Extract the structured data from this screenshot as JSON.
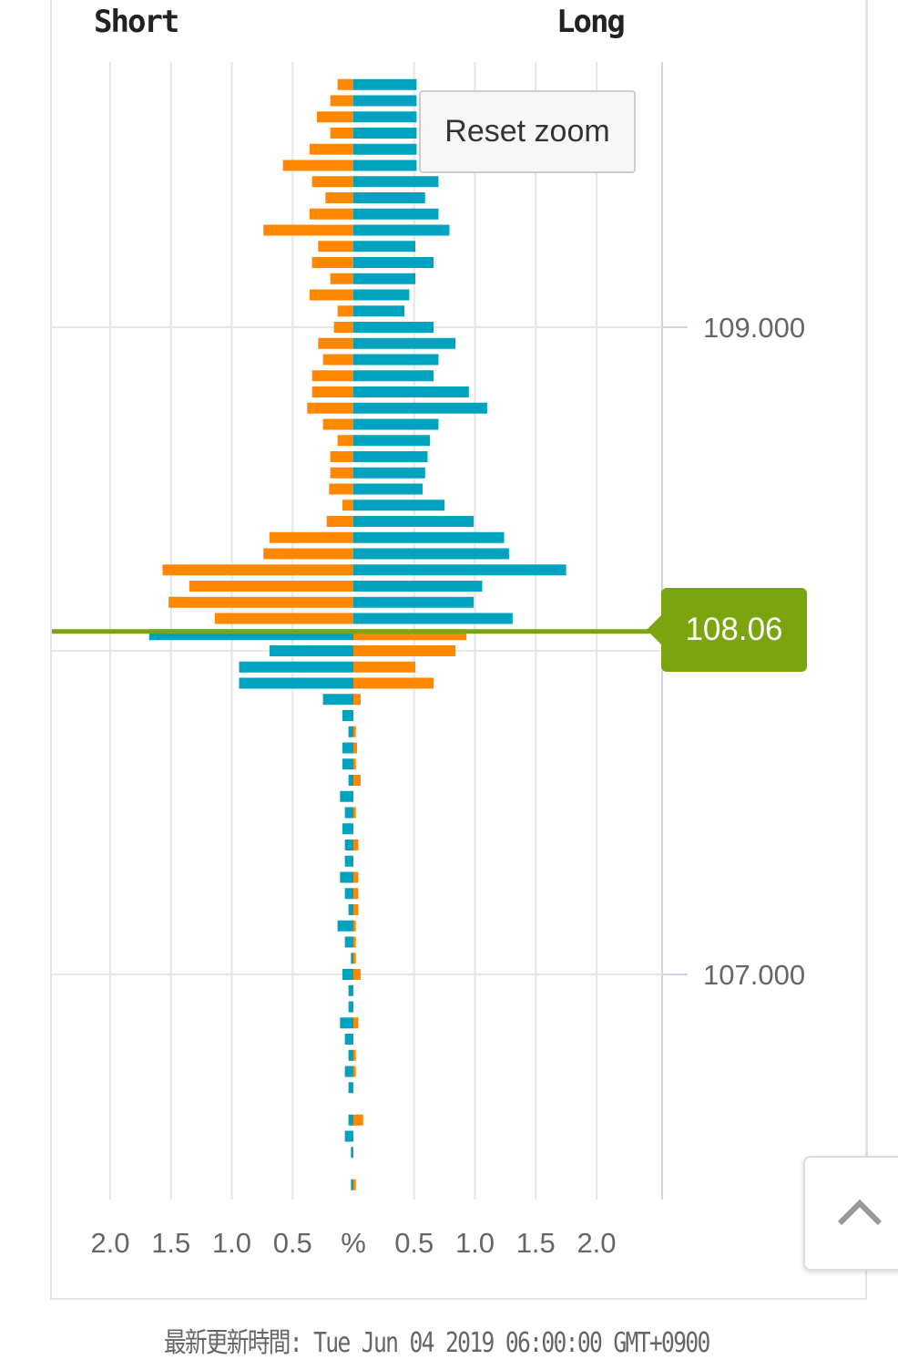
{
  "header": {
    "short_label": "Short",
    "long_label": "Long"
  },
  "reset_zoom_label": "Reset zoom",
  "current_price_label": "108.06",
  "footer": {
    "updated_text": "最新更新時間: Tue Jun 04 2019 06:00:00 GMT+0900"
  },
  "colors": {
    "orange": "#ff8800",
    "blue": "#00a3bf",
    "price_line": "#7aa50e"
  },
  "chart_data": {
    "type": "bar",
    "title": "",
    "orientation": "horizontal-butterfly",
    "xlabel": "%",
    "x_tick_labels": [
      "2.0",
      "1.5",
      "1.0",
      "0.5",
      "%",
      "0.5",
      "1.0",
      "1.5",
      "2.0"
    ],
    "xlim": [
      -2.5,
      2.5
    ],
    "y_tick_labels": [
      "109.000",
      "108.000",
      "107.000"
    ],
    "y_ticks": [
      109.0,
      108.0,
      107.0
    ],
    "ylim": [
      106.3,
      109.8
    ],
    "current_price": 108.06,
    "price_step": 0.05,
    "top_price": 109.75,
    "series": [
      {
        "name": "Left (Short above price / Long below)",
        "values": [
          0.13,
          0.19,
          0.3,
          0.19,
          0.36,
          0.58,
          0.34,
          0.23,
          0.36,
          0.74,
          0.29,
          0.34,
          0.19,
          0.36,
          0.13,
          0.16,
          0.29,
          0.25,
          0.34,
          0.34,
          0.38,
          0.25,
          0.13,
          0.19,
          0.19,
          0.2,
          0.09,
          0.22,
          0.69,
          0.74,
          1.57,
          1.35,
          1.52,
          1.14,
          1.68,
          0.69,
          0.94,
          0.94,
          0.25,
          0.09,
          0.04,
          0.09,
          0.09,
          0.04,
          0.11,
          0.07,
          0.09,
          0.07,
          0.07,
          0.11,
          0.07,
          0.04,
          0.13,
          0.07,
          0.02,
          0.09,
          0.04,
          0.04,
          0.11,
          0.07,
          0.04,
          0.07,
          0.04,
          0,
          0.04,
          0.07,
          0.02,
          0,
          0.02
        ]
      },
      {
        "name": "Right (Long above price / Short below)",
        "values": [
          0.52,
          0.52,
          0.52,
          0.52,
          0.52,
          0.52,
          0.7,
          0.59,
          0.7,
          0.79,
          0.51,
          0.66,
          0.51,
          0.46,
          0.42,
          0.66,
          0.84,
          0.7,
          0.66,
          0.95,
          1.1,
          0.7,
          0.63,
          0.61,
          0.59,
          0.57,
          0.75,
          0.99,
          1.24,
          1.28,
          1.75,
          1.06,
          0.99,
          1.31,
          0.93,
          0.84,
          0.51,
          0.66,
          0.06,
          0,
          0.02,
          0.03,
          0.02,
          0.06,
          0,
          0.02,
          0,
          0.04,
          0,
          0.04,
          0.04,
          0.04,
          0.02,
          0.02,
          0.02,
          0.06,
          0,
          0,
          0.04,
          0,
          0.02,
          0.02,
          0,
          0,
          0.08,
          0,
          0,
          0,
          0.02
        ]
      }
    ]
  }
}
